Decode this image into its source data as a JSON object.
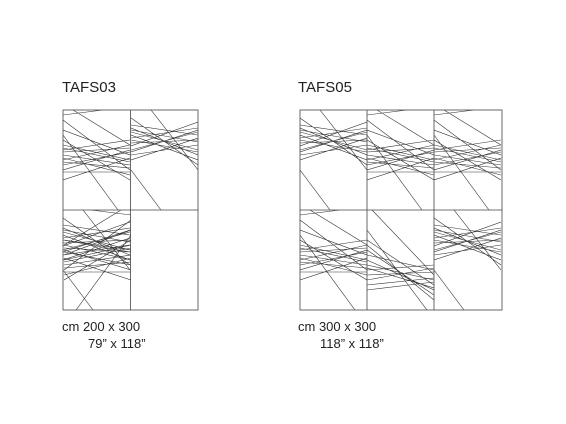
{
  "items": [
    {
      "code": "TAFS03",
      "size_cm": "cm 200 x 300",
      "size_in": "79” x 118”"
    },
    {
      "code": "TAFS05",
      "size_cm": "cm 300 x 300",
      "size_in": "118” x 118”"
    }
  ]
}
